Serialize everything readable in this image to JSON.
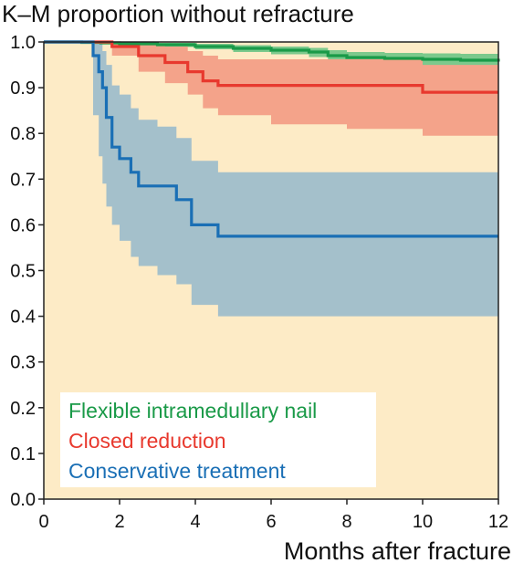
{
  "chart_data": {
    "type": "line",
    "title": "K–M proportion without refracture",
    "xlabel": "Months after fracture",
    "ylabel": "",
    "xlim": [
      0,
      12
    ],
    "ylim": [
      0,
      1
    ],
    "x_ticks": [
      0,
      2,
      4,
      6,
      8,
      10,
      12
    ],
    "y_ticks": [
      0.0,
      0.1,
      0.2,
      0.3,
      0.4,
      0.5,
      0.6,
      0.7,
      0.8,
      0.9,
      1.0
    ],
    "legend_position": "bottom-left",
    "background_color": "#fdebc6",
    "series": [
      {
        "name": "Flexible intramedullary nail",
        "color": "#1a9a48",
        "band_color": "#7cc98c",
        "x": [
          0,
          0.5,
          1.0,
          1.5,
          2.0,
          3.0,
          4.0,
          5.0,
          6.0,
          7.0,
          7.5,
          8.0,
          9.0,
          10.0,
          11.0,
          12.0
        ],
        "y": [
          1.0,
          1.0,
          0.999,
          0.998,
          0.996,
          0.994,
          0.99,
          0.986,
          0.982,
          0.978,
          0.97,
          0.966,
          0.964,
          0.962,
          0.96,
          0.957
        ],
        "lower": [
          1.0,
          0.999,
          0.997,
          0.995,
          0.992,
          0.989,
          0.984,
          0.978,
          0.973,
          0.967,
          0.958,
          0.953,
          0.95,
          0.947,
          0.944,
          0.941
        ],
        "upper": [
          1.0,
          1.0,
          1.0,
          1.0,
          0.999,
          0.998,
          0.996,
          0.993,
          0.99,
          0.987,
          0.982,
          0.978,
          0.976,
          0.975,
          0.974,
          0.972
        ]
      },
      {
        "name": "Closed reduction",
        "color": "#e8392e",
        "band_color": "#f4a38a",
        "x": [
          0,
          1.8,
          2.5,
          3.2,
          3.8,
          4.2,
          4.6,
          6.0,
          8.0,
          10.0,
          12.0
        ],
        "y": [
          1.0,
          0.99,
          0.97,
          0.955,
          0.935,
          0.915,
          0.905,
          0.905,
          0.905,
          0.89,
          0.89
        ],
        "lower": [
          1.0,
          0.97,
          0.935,
          0.91,
          0.885,
          0.855,
          0.84,
          0.82,
          0.81,
          0.795,
          0.795
        ],
        "upper": [
          1.0,
          1.0,
          0.997,
          0.99,
          0.98,
          0.97,
          0.962,
          0.962,
          0.962,
          0.95,
          0.95
        ]
      },
      {
        "name": "Conservative treatment",
        "color": "#1a6fb5",
        "band_color": "#a4c0cb",
        "x": [
          0,
          1.3,
          1.45,
          1.55,
          1.65,
          1.8,
          2.0,
          2.3,
          2.5,
          3.0,
          3.5,
          3.9,
          4.6,
          6.0,
          8.0,
          10.0,
          12.0
        ],
        "y": [
          1.0,
          0.97,
          0.935,
          0.9,
          0.835,
          0.77,
          0.745,
          0.715,
          0.685,
          0.685,
          0.655,
          0.6,
          0.575,
          0.575,
          0.575,
          0.575,
          0.575
        ],
        "lower": [
          1.0,
          0.84,
          0.75,
          0.69,
          0.64,
          0.6,
          0.565,
          0.53,
          0.51,
          0.49,
          0.47,
          0.425,
          0.4,
          0.4,
          0.4,
          0.4,
          0.4
        ],
        "upper": [
          1.0,
          1.0,
          0.995,
          0.98,
          0.95,
          0.905,
          0.885,
          0.855,
          0.83,
          0.815,
          0.79,
          0.74,
          0.715,
          0.715,
          0.715,
          0.715,
          0.715
        ]
      }
    ]
  }
}
